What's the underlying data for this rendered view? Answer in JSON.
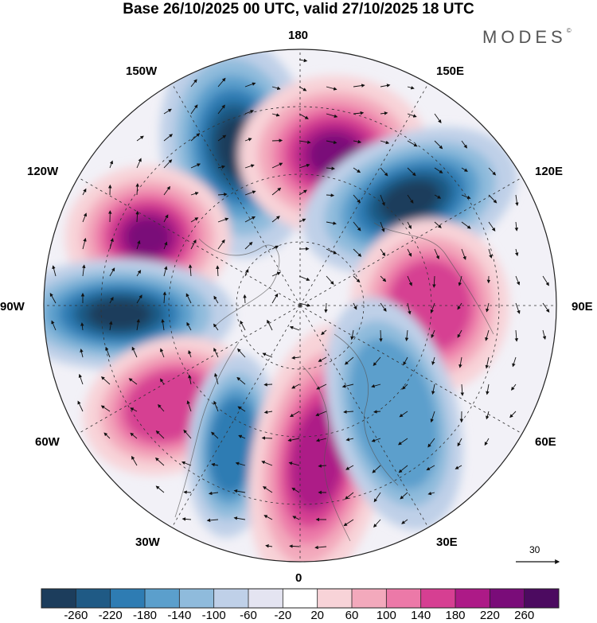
{
  "title": "Base 26/10/2025 00 UTC, valid 27/10/2025 18 UTC",
  "brand": "MODES",
  "brand_mark": "©",
  "longitude_labels": {
    "top": "180",
    "bottom": "0",
    "left": "90W",
    "right": "90E",
    "upper_left": "150W",
    "upper_right": "150E",
    "mid_left_upper": "120W",
    "mid_right_upper": "120E",
    "mid_left_lower": "60W",
    "mid_right_lower": "60E",
    "lower_left": "30W",
    "lower_right": "30E"
  },
  "reference_vector": {
    "label": "30"
  },
  "colorbar": {
    "ticks": [
      "-260",
      "-220",
      "-180",
      "-140",
      "-100",
      "-60",
      "-20",
      "20",
      "60",
      "100",
      "140",
      "180",
      "220",
      "260"
    ],
    "colors": [
      "#1c3d5c",
      "#1f5a85",
      "#2e7cb3",
      "#5b9fcc",
      "#8fbbdc",
      "#bfd0e8",
      "#e4e4f1",
      "#ffffff",
      "#f8d3d8",
      "#f3a9bc",
      "#ec79a8",
      "#d63f92",
      "#ad1a87",
      "#7a0c79",
      "#4c0a60"
    ]
  },
  "map_field": {
    "description_free": true,
    "anomalies": [
      {
        "id": "north-central",
        "sign": "negative",
        "value": -260
      },
      {
        "id": "north-east",
        "sign": "positive",
        "value": 260
      },
      {
        "id": "east-north",
        "sign": "negative",
        "value": -260
      },
      {
        "id": "west-north",
        "sign": "positive",
        "value": 260
      },
      {
        "id": "west",
        "sign": "negative",
        "value": -260
      },
      {
        "id": "east",
        "sign": "positive",
        "value": 180
      },
      {
        "id": "south-west",
        "sign": "positive",
        "value": 180
      },
      {
        "id": "south-central-west",
        "sign": "negative",
        "value": -180
      },
      {
        "id": "south-central",
        "sign": "positive",
        "value": 220
      },
      {
        "id": "south-east",
        "sign": "negative",
        "value": -140
      }
    ]
  }
}
